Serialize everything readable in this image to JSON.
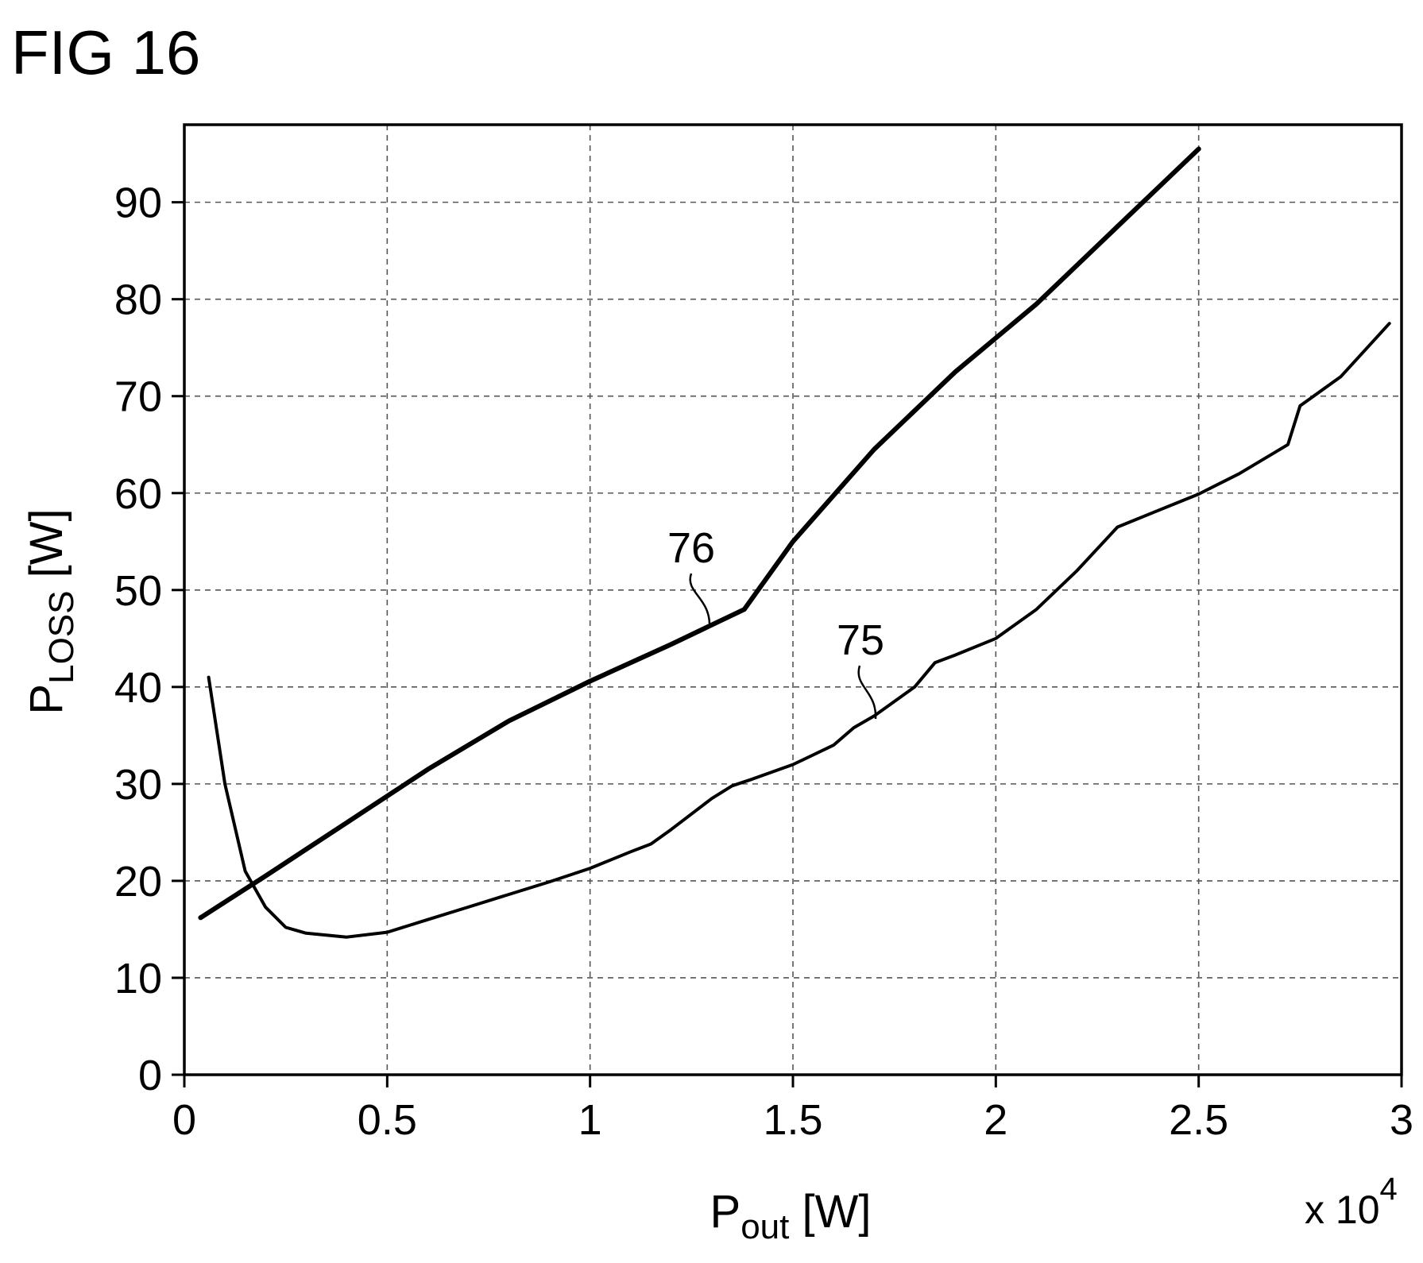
{
  "figure": {
    "title": "FIG 16"
  },
  "chart_data": {
    "type": "line",
    "title": "FIG 16",
    "xlabel": {
      "main": "P",
      "sub": "out",
      "unit": " [W]"
    },
    "ylabel": {
      "main": "P",
      "sub": "LOSS",
      "unit": " [W]"
    },
    "x_multiplier": {
      "text": "x 10",
      "exponent": "4"
    },
    "xlim": [
      0,
      3
    ],
    "ylim": [
      0,
      98
    ],
    "x_ticks": [
      0,
      0.5,
      1,
      1.5,
      2,
      2.5,
      3
    ],
    "x_tick_labels": [
      "0",
      "0.5",
      "1",
      "1.5",
      "2",
      "2.5",
      "3"
    ],
    "y_ticks": [
      0,
      10,
      20,
      30,
      40,
      50,
      60,
      70,
      80,
      90
    ],
    "y_tick_labels": [
      "0",
      "10",
      "20",
      "30",
      "40",
      "50",
      "60",
      "70",
      "80",
      "90"
    ],
    "grid": true,
    "series": [
      {
        "name": "76",
        "color": "#000000",
        "x": [
          0.04,
          0.2,
          0.4,
          0.6,
          0.8,
          1.0,
          1.2,
          1.38,
          1.5,
          1.7,
          1.9,
          2.1,
          2.3,
          2.5
        ],
        "y": [
          16.2,
          20.5,
          26,
          31.5,
          36.5,
          40.6,
          44.4,
          48,
          55,
          64.5,
          72.5,
          79.5,
          87.5,
          95.5
        ]
      },
      {
        "name": "75",
        "color": "#000000",
        "x": [
          0.06,
          0.1,
          0.15,
          0.2,
          0.25,
          0.3,
          0.4,
          0.5,
          0.6,
          0.7,
          0.8,
          0.9,
          1.0,
          1.1,
          1.15,
          1.2,
          1.3,
          1.35,
          1.4,
          1.5,
          1.6,
          1.65,
          1.7,
          1.8,
          1.85,
          1.9,
          2.0,
          2.1,
          2.2,
          2.3,
          2.4,
          2.5,
          2.6,
          2.7,
          2.72,
          2.75,
          2.85,
          2.97
        ],
        "y": [
          41,
          30,
          21,
          17.3,
          15.2,
          14.6,
          14.2,
          14.7,
          16,
          17.3,
          18.6,
          19.9,
          21.3,
          23,
          23.8,
          25.3,
          28.5,
          29.8,
          30.5,
          32,
          34,
          35.8,
          37,
          40,
          42.5,
          43.3,
          45,
          48,
          52,
          56.5,
          58.2,
          59.9,
          62,
          64.5,
          65,
          69,
          72,
          77.5
        ]
      }
    ],
    "annotations": [
      {
        "text": "76",
        "series": "76"
      },
      {
        "text": "75",
        "series": "75"
      }
    ]
  }
}
